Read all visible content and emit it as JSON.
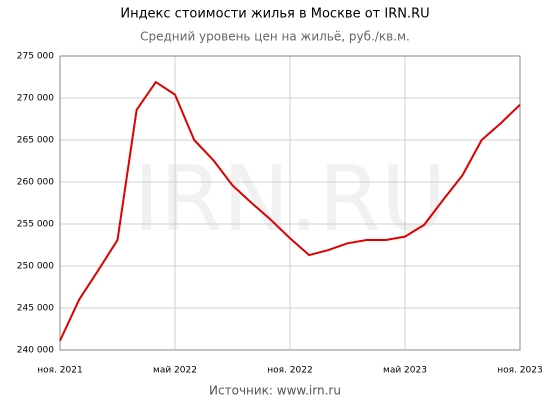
{
  "chart_data": {
    "type": "line",
    "title": "Индекс стоимости жилья в Москве от IRN.RU",
    "subtitle": "Средний уровень цен на жильё, руб./кв.м.",
    "watermark": "IRN.RU",
    "source": "Источник: www.irn.ru",
    "x": [
      "2021-11",
      "2021-12",
      "2022-01",
      "2022-02",
      "2022-03",
      "2022-04",
      "2022-05",
      "2022-06",
      "2022-07",
      "2022-08",
      "2022-09",
      "2022-10",
      "2022-11",
      "2022-12",
      "2023-01",
      "2023-02",
      "2023-03",
      "2023-04",
      "2023-05",
      "2023-06",
      "2023-07",
      "2023-08",
      "2023-09",
      "2023-10",
      "2023-11"
    ],
    "series": [
      {
        "name": "Индекс",
        "color": "#e00000",
        "values": [
          241100,
          246000,
          249500,
          253100,
          268600,
          271900,
          270400,
          265000,
          262600,
          259600,
          257500,
          255500,
          253300,
          251300,
          251900,
          252700,
          253100,
          253100,
          253500,
          254900,
          257900,
          260800,
          265000,
          267000,
          269200
        ]
      }
    ],
    "xlim": [
      "2021-11",
      "2023-11"
    ],
    "xticks": [
      {
        "value": "2021-11",
        "label": "ноя. 2021"
      },
      {
        "value": "2022-05",
        "label": "май 2022"
      },
      {
        "value": "2022-11",
        "label": "ноя. 2022"
      },
      {
        "value": "2023-05",
        "label": "май 2023"
      },
      {
        "value": "2023-11",
        "label": "ноя. 2023"
      }
    ],
    "ylim": [
      240000,
      275000
    ],
    "yticks": [
      {
        "value": 240000,
        "label": "240 000"
      },
      {
        "value": 245000,
        "label": "245 000"
      },
      {
        "value": 250000,
        "label": "250 000"
      },
      {
        "value": 255000,
        "label": "255 000"
      },
      {
        "value": 260000,
        "label": "260 000"
      },
      {
        "value": 265000,
        "label": "265 000"
      },
      {
        "value": 270000,
        "label": "270 000"
      },
      {
        "value": 275000,
        "label": "275 000"
      }
    ],
    "grid": true
  }
}
